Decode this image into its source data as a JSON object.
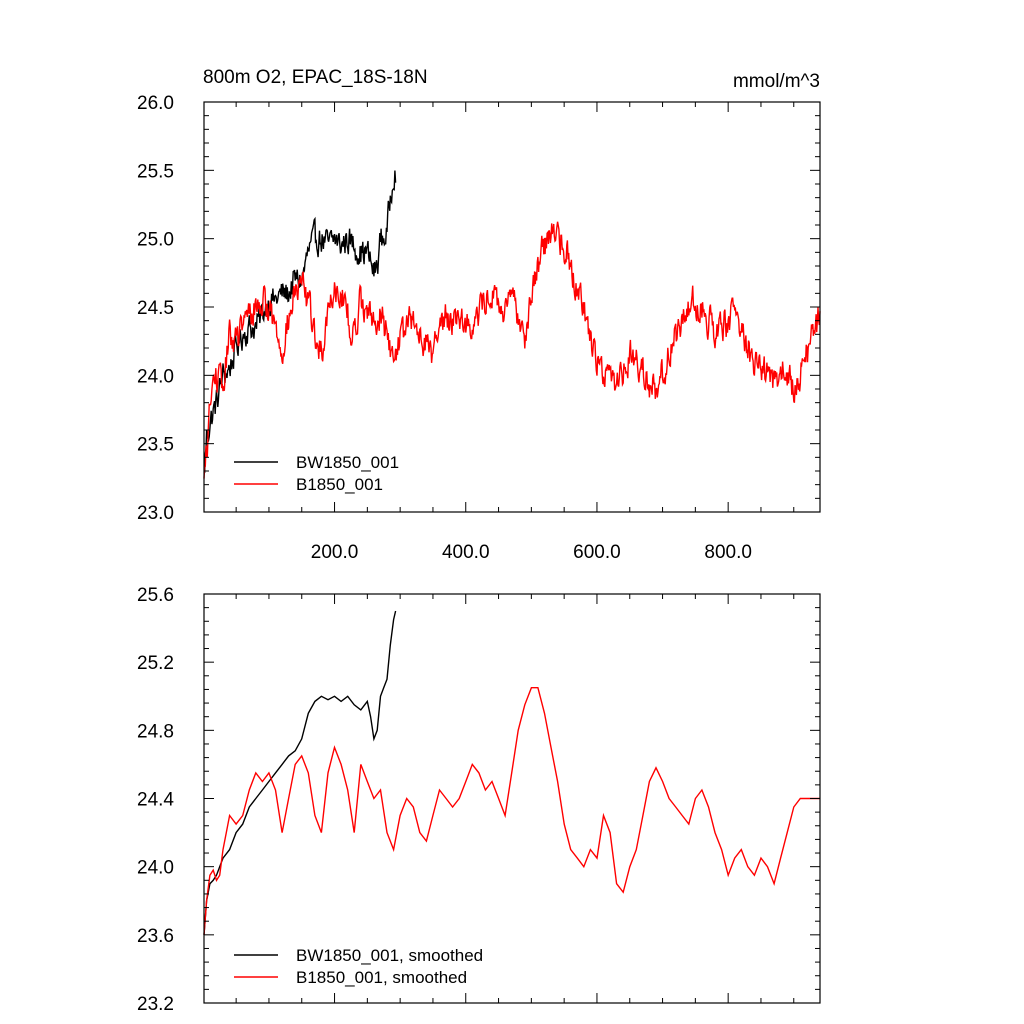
{
  "header": {
    "title": "800m O2, EPAC_18S-18N",
    "units": "mmol/m^3"
  },
  "chart_data": [
    {
      "type": "line",
      "title": "800m O2, EPAC_18S-18N",
      "units": "mmol/m^3",
      "xlim": [
        1,
        940
      ],
      "ylim": [
        23.0,
        26.0
      ],
      "xticks": [
        200,
        400,
        600,
        800
      ],
      "xtick_labels": [
        "200.0",
        "400.0",
        "600.0",
        "800.0"
      ],
      "yticks": [
        23.0,
        23.5,
        24.0,
        24.5,
        25.0,
        25.5,
        26.0
      ],
      "ytick_labels": [
        "23.0",
        "23.5",
        "24.0",
        "24.5",
        "25.0",
        "25.5",
        "26.0"
      ],
      "legend_position": "bottom-left",
      "series": [
        {
          "name": "BW1850_001",
          "color": "#000000",
          "noise": 0.09,
          "x": [
            1,
            5,
            10,
            20,
            30,
            40,
            50,
            60,
            70,
            80,
            90,
            100,
            110,
            120,
            130,
            140,
            150,
            160,
            170,
            180,
            190,
            200,
            210,
            220,
            230,
            240,
            250,
            260,
            265,
            270,
            275,
            280,
            285,
            290,
            293
          ],
          "y": [
            23.25,
            23.55,
            23.65,
            23.8,
            24.0,
            24.05,
            24.2,
            24.3,
            24.35,
            24.35,
            24.45,
            24.55,
            24.55,
            24.6,
            24.6,
            24.7,
            24.7,
            24.9,
            25.0,
            25.0,
            24.95,
            25.0,
            24.95,
            25.0,
            24.95,
            24.9,
            24.9,
            24.75,
            24.8,
            25.0,
            25.0,
            25.05,
            25.3,
            25.5,
            25.5
          ]
        },
        {
          "name": "B1850_001",
          "color": "#ff0000",
          "noise": 0.1,
          "x": [
            1,
            5,
            10,
            15,
            20,
            30,
            40,
            50,
            60,
            70,
            80,
            90,
            100,
            110,
            120,
            130,
            140,
            150,
            160,
            170,
            180,
            190,
            200,
            210,
            220,
            230,
            240,
            250,
            260,
            270,
            280,
            290,
            300,
            310,
            320,
            330,
            340,
            350,
            360,
            370,
            380,
            390,
            400,
            410,
            420,
            430,
            440,
            450,
            460,
            470,
            480,
            490,
            500,
            510,
            520,
            530,
            540,
            550,
            560,
            570,
            580,
            590,
            600,
            610,
            620,
            630,
            640,
            650,
            660,
            670,
            680,
            690,
            700,
            710,
            720,
            730,
            740,
            750,
            760,
            770,
            780,
            790,
            800,
            810,
            820,
            830,
            840,
            850,
            860,
            870,
            880,
            890,
            900,
            910,
            920,
            930,
            940
          ],
          "y": [
            23.2,
            23.45,
            23.75,
            23.95,
            24.0,
            23.9,
            24.3,
            24.25,
            24.35,
            24.45,
            24.5,
            24.55,
            24.5,
            24.35,
            24.2,
            24.4,
            24.6,
            24.65,
            24.55,
            24.3,
            24.15,
            24.5,
            24.65,
            24.6,
            24.45,
            24.25,
            24.6,
            24.45,
            24.4,
            24.45,
            24.3,
            24.1,
            24.3,
            24.35,
            24.4,
            24.3,
            24.25,
            24.15,
            24.35,
            24.45,
            24.4,
            24.45,
            24.4,
            24.35,
            24.45,
            24.55,
            24.6,
            24.5,
            24.45,
            24.55,
            24.45,
            24.3,
            24.6,
            24.8,
            24.95,
            25.05,
            25.05,
            24.95,
            24.8,
            24.65,
            24.5,
            24.3,
            24.1,
            24.05,
            24.0,
            23.95,
            24.05,
            24.15,
            24.1,
            24.05,
            23.95,
            23.9,
            24.0,
            24.15,
            24.3,
            24.4,
            24.5,
            24.55,
            24.5,
            24.4,
            24.35,
            24.35,
            24.4,
            24.45,
            24.35,
            24.2,
            24.1,
            24.05,
            24.0,
            23.95,
            24.05,
            24.0,
            23.9,
            24.0,
            24.15,
            24.35,
            24.4
          ]
        }
      ]
    },
    {
      "type": "line",
      "xlim": [
        1,
        940
      ],
      "ylim": [
        23.2,
        25.6
      ],
      "yticks": [
        23.2,
        23.6,
        24.0,
        24.4,
        24.8,
        25.2,
        25.6
      ],
      "ytick_labels": [
        "23.2",
        "23.6",
        "24.0",
        "24.4",
        "24.8",
        "25.2",
        "25.6"
      ],
      "legend_position": "bottom-left",
      "series": [
        {
          "name": "BW1850_001, smoothed",
          "color": "#000000",
          "noise": 0,
          "x": [
            1,
            5,
            10,
            15,
            20,
            25,
            30,
            40,
            50,
            60,
            70,
            80,
            90,
            100,
            110,
            120,
            130,
            140,
            150,
            160,
            170,
            180,
            190,
            200,
            210,
            220,
            230,
            240,
            250,
            255,
            260,
            265,
            270,
            275,
            280,
            285,
            290,
            293
          ],
          "y": [
            23.6,
            23.8,
            23.9,
            23.92,
            23.95,
            24.0,
            24.05,
            24.1,
            24.2,
            24.25,
            24.35,
            24.4,
            24.45,
            24.5,
            24.55,
            24.6,
            24.65,
            24.68,
            24.75,
            24.9,
            24.97,
            25.0,
            24.98,
            25.0,
            24.97,
            25.0,
            24.95,
            24.92,
            24.97,
            24.88,
            24.75,
            24.8,
            25.0,
            25.05,
            25.1,
            25.3,
            25.45,
            25.5
          ]
        },
        {
          "name": "B1850_001, smoothed",
          "color": "#ff0000",
          "noise": 0,
          "x": [
            1,
            5,
            10,
            15,
            20,
            25,
            30,
            35,
            40,
            50,
            60,
            70,
            80,
            90,
            100,
            110,
            120,
            130,
            140,
            150,
            160,
            170,
            180,
            190,
            200,
            210,
            220,
            230,
            240,
            250,
            260,
            270,
            280,
            290,
            300,
            310,
            320,
            330,
            340,
            350,
            360,
            370,
            380,
            390,
            400,
            410,
            420,
            430,
            440,
            450,
            460,
            470,
            480,
            490,
            500,
            510,
            520,
            530,
            540,
            550,
            560,
            570,
            580,
            590,
            600,
            610,
            620,
            630,
            640,
            650,
            660,
            670,
            680,
            690,
            700,
            710,
            720,
            730,
            740,
            750,
            760,
            770,
            780,
            790,
            800,
            810,
            820,
            830,
            840,
            850,
            860,
            870,
            880,
            890,
            900,
            910,
            920,
            930,
            940
          ],
          "y": [
            23.6,
            23.8,
            23.95,
            23.98,
            23.92,
            23.95,
            24.1,
            24.2,
            24.3,
            24.25,
            24.3,
            24.45,
            24.55,
            24.5,
            24.55,
            24.45,
            24.2,
            24.4,
            24.6,
            24.65,
            24.55,
            24.3,
            24.2,
            24.55,
            24.7,
            24.6,
            24.45,
            24.2,
            24.6,
            24.5,
            24.4,
            24.45,
            24.2,
            24.1,
            24.3,
            24.4,
            24.35,
            24.2,
            24.15,
            24.3,
            24.45,
            24.4,
            24.35,
            24.4,
            24.5,
            24.6,
            24.55,
            24.45,
            24.5,
            24.4,
            24.3,
            24.55,
            24.8,
            24.95,
            25.05,
            25.05,
            24.9,
            24.7,
            24.5,
            24.25,
            24.1,
            24.05,
            24.0,
            24.1,
            24.05,
            24.3,
            24.2,
            23.9,
            23.85,
            24.0,
            24.1,
            24.3,
            24.5,
            24.58,
            24.5,
            24.4,
            24.35,
            24.3,
            24.25,
            24.4,
            24.45,
            24.35,
            24.2,
            24.1,
            23.95,
            24.05,
            24.1,
            24.0,
            23.95,
            24.05,
            24.0,
            23.9,
            24.05,
            24.2,
            24.35,
            24.4,
            24.4,
            24.4,
            24.4
          ]
        }
      ]
    }
  ]
}
